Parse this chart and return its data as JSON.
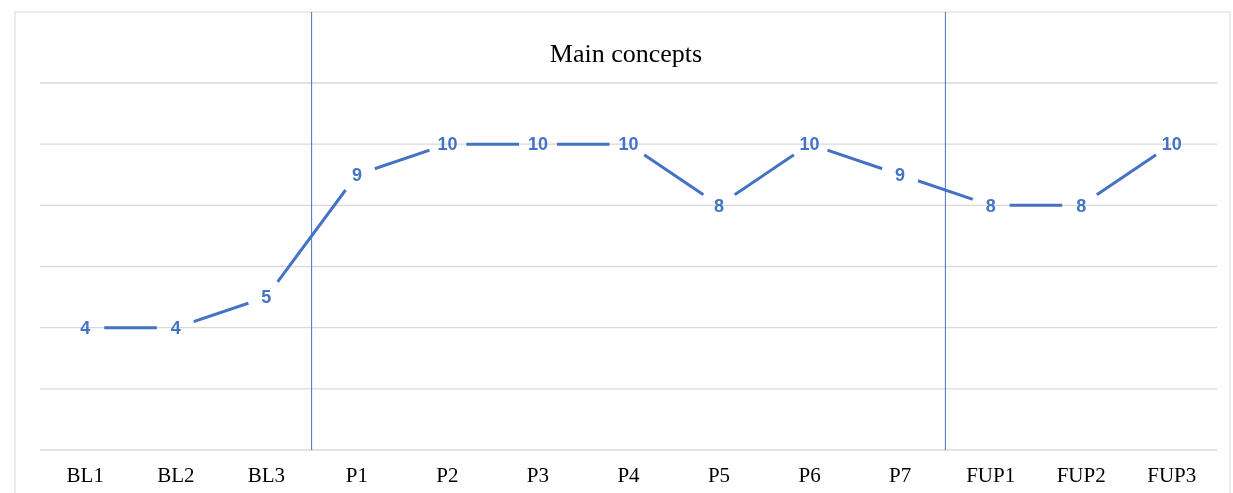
{
  "chart_data": {
    "type": "line",
    "title": "Main concepts",
    "categories": [
      "BL1",
      "BL2",
      "BL3",
      "P1",
      "P2",
      "P3",
      "P4",
      "P5",
      "P6",
      "P7",
      "FUP1",
      "FUP2",
      "FUP3"
    ],
    "series": [
      {
        "color": "#4472c4",
        "values": [
          4,
          4,
          5,
          9,
          10,
          10,
          10,
          8,
          10,
          9,
          8,
          8,
          10
        ]
      }
    ],
    "ylim": [
      0,
      12
    ],
    "yticks": [
      {
        "value": 0,
        "label": null
      },
      {
        "value": 2,
        "label": null
      },
      {
        "value": 4,
        "label": null
      },
      {
        "value": 6,
        "label": null
      },
      {
        "value": 8,
        "label": null
      },
      {
        "value": 10,
        "label": null
      },
      {
        "value": 12,
        "label": null
      }
    ],
    "tick_labels": "x",
    "grid": "y",
    "data_labels": true,
    "marker": "none",
    "line_style": "solid"
  }
}
